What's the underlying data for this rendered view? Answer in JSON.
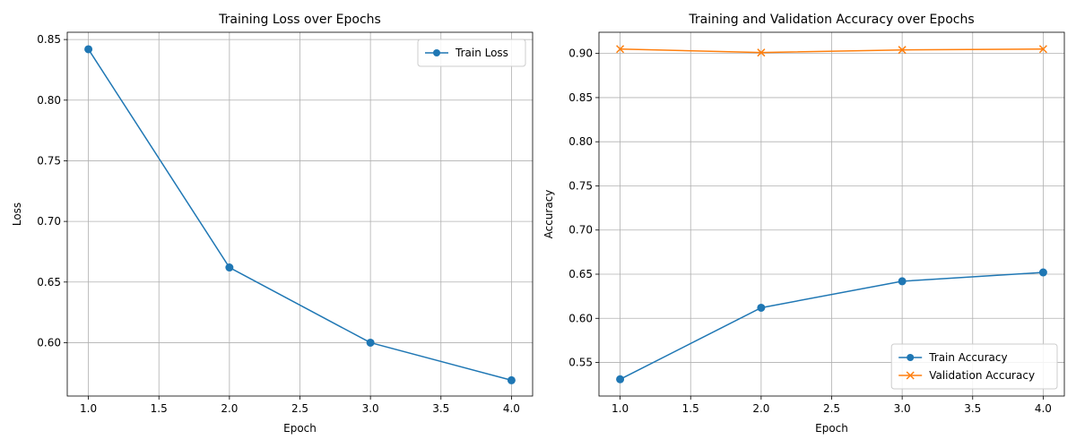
{
  "chart_data": [
    {
      "type": "line",
      "title": "Training Loss over Epochs",
      "xlabel": "Epoch",
      "ylabel": "Loss",
      "xlim": [
        0.85,
        4.15
      ],
      "ylim": [
        0.556,
        0.856
      ],
      "xticks": [
        1.0,
        1.5,
        2.0,
        2.5,
        3.0,
        3.5,
        4.0
      ],
      "yticks": [
        0.6,
        0.65,
        0.7,
        0.75,
        0.8,
        0.85
      ],
      "grid": true,
      "legend_position": "top-right",
      "x": [
        1.0,
        2.0,
        3.0,
        4.0
      ],
      "series": [
        {
          "name": "Train Loss",
          "values": [
            0.842,
            0.662,
            0.6,
            0.569
          ],
          "color": "#1f77b4",
          "marker": "circle"
        }
      ]
    },
    {
      "type": "line",
      "title": "Training and Validation Accuracy over Epochs",
      "xlabel": "Epoch",
      "ylabel": "Accuracy",
      "xlim": [
        0.85,
        4.15
      ],
      "ylim": [
        0.512,
        0.924
      ],
      "xticks": [
        1.0,
        1.5,
        2.0,
        2.5,
        3.0,
        3.5,
        4.0
      ],
      "yticks": [
        0.55,
        0.6,
        0.65,
        0.7,
        0.75,
        0.8,
        0.85,
        0.9
      ],
      "grid": true,
      "legend_position": "bottom-right",
      "x": [
        1.0,
        2.0,
        3.0,
        4.0
      ],
      "series": [
        {
          "name": "Train Accuracy",
          "values": [
            0.531,
            0.612,
            0.642,
            0.652
          ],
          "color": "#1f77b4",
          "marker": "circle"
        },
        {
          "name": "Validation Accuracy",
          "values": [
            0.905,
            0.901,
            0.904,
            0.905
          ],
          "color": "#ff7f0e",
          "marker": "x"
        }
      ]
    }
  ]
}
